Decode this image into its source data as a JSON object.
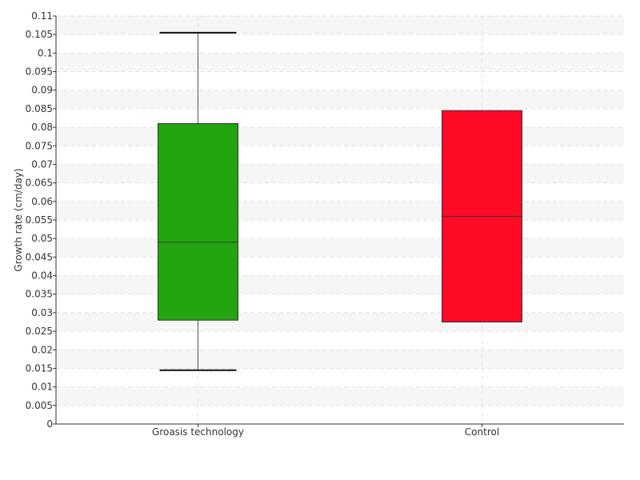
{
  "chart_data": {
    "type": "boxplot",
    "title": "",
    "xlabel": "",
    "ylabel": "Growth rate (cm/day)",
    "ylim": [
      0,
      0.11
    ],
    "ytick_step": 0.005,
    "yticks": [
      "0",
      "0.005",
      "0.01",
      "0.015",
      "0.02",
      "0.025",
      "0.03",
      "0.035",
      "0.04",
      "0.045",
      "0.05",
      "0.055",
      "0.06",
      "0.065",
      "0.07",
      "0.075",
      "0.08",
      "0.085",
      "0.09",
      "0.095",
      "0.1",
      "0.105",
      "0.11"
    ],
    "grid": true,
    "categories": [
      "Groasis technology",
      "Control"
    ],
    "series": [
      {
        "category": "Groasis technology",
        "color": "#22a50f",
        "whisker_low": 0.0145,
        "q1": 0.028,
        "median": 0.049,
        "q3": 0.081,
        "whisker_high": 0.1055
      },
      {
        "category": "Control",
        "color": "#ff0b28",
        "whisker_low": 0.0275,
        "q1": 0.0275,
        "median": 0.056,
        "q3": 0.0845,
        "whisker_high": 0.0845
      }
    ]
  }
}
